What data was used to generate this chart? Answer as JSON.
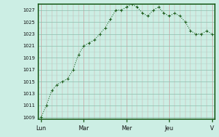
{
  "background_color": "#cceee4",
  "line_color": "#1a5c1a",
  "marker_color": "#1a5c1a",
  "x_tick_labels": [
    "Lun",
    "Mar",
    "Mer",
    "Jeu",
    "V"
  ],
  "x_tick_positions": [
    0,
    8,
    16,
    24,
    32
  ],
  "y_min": 1009,
  "y_max": 1027,
  "y_step": 2,
  "grid_minor_color": "#aad8cc",
  "grid_major_color": "#99ccbb",
  "axis_color": "#1a5c1a",
  "spine_color": "#1a5c1a",
  "data_x": [
    0,
    1,
    2,
    3,
    4,
    5,
    6,
    7,
    8,
    9,
    10,
    11,
    12,
    13,
    14,
    15,
    16,
    17,
    18,
    19,
    20,
    21,
    22,
    23,
    24,
    25,
    26,
    27,
    28,
    29,
    30,
    31,
    32
  ],
  "data_y": [
    1009,
    1011,
    1013.5,
    1014.5,
    1015,
    1015.5,
    1017,
    1019.5,
    1021,
    1021.5,
    1022,
    1023,
    1024,
    1025.5,
    1027,
    1027,
    1027.5,
    1028,
    1027.5,
    1026.5,
    1026,
    1027,
    1027.5,
    1026.5,
    1026,
    1026.5,
    1026,
    1025,
    1023.5,
    1023,
    1023,
    1023.5,
    1023
  ]
}
